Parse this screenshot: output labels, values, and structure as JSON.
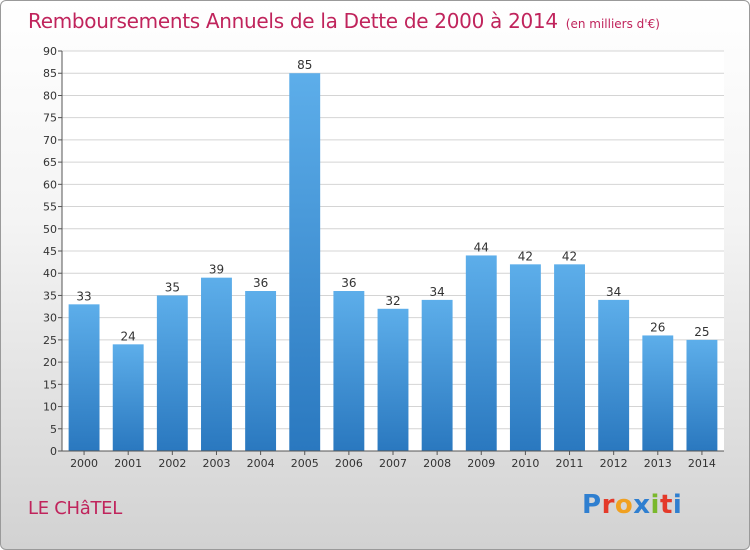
{
  "header": {
    "title": "Remboursements Annuels de la Dette de 2000 à 2014",
    "unit": "(en milliers d'€)"
  },
  "footer": {
    "commune": "LE CHâTEL",
    "logo_letters": [
      {
        "char": "P",
        "color": "#2f7fd0"
      },
      {
        "char": "r",
        "color": "#e43a2a"
      },
      {
        "char": "o",
        "color": "#f0a020"
      },
      {
        "char": "x",
        "color": "#2f7fd0"
      },
      {
        "char": "i",
        "color": "#7ab82c"
      },
      {
        "char": "t",
        "color": "#e43a2a"
      },
      {
        "char": "i",
        "color": "#2f7fd0"
      }
    ]
  },
  "colors": {
    "bar_top": "#5daeea",
    "bar_bottom": "#2a78bf",
    "accent": "#c0245c"
  },
  "chart_data": {
    "type": "bar",
    "categories": [
      "2000",
      "2001",
      "2002",
      "2003",
      "2004",
      "2005",
      "2006",
      "2007",
      "2008",
      "2009",
      "2010",
      "2011",
      "2012",
      "2013",
      "2014"
    ],
    "values": [
      33,
      24,
      35,
      39,
      36,
      85,
      36,
      32,
      34,
      44,
      42,
      42,
      34,
      26,
      25
    ],
    "title": "Remboursements Annuels de la Dette de 2000 à 2014",
    "ylim": [
      0,
      90
    ],
    "yticks": [
      0,
      5,
      10,
      15,
      20,
      25,
      30,
      35,
      40,
      45,
      50,
      55,
      60,
      65,
      70,
      75,
      80,
      85,
      90
    ],
    "grid": true,
    "data_labels": true
  }
}
